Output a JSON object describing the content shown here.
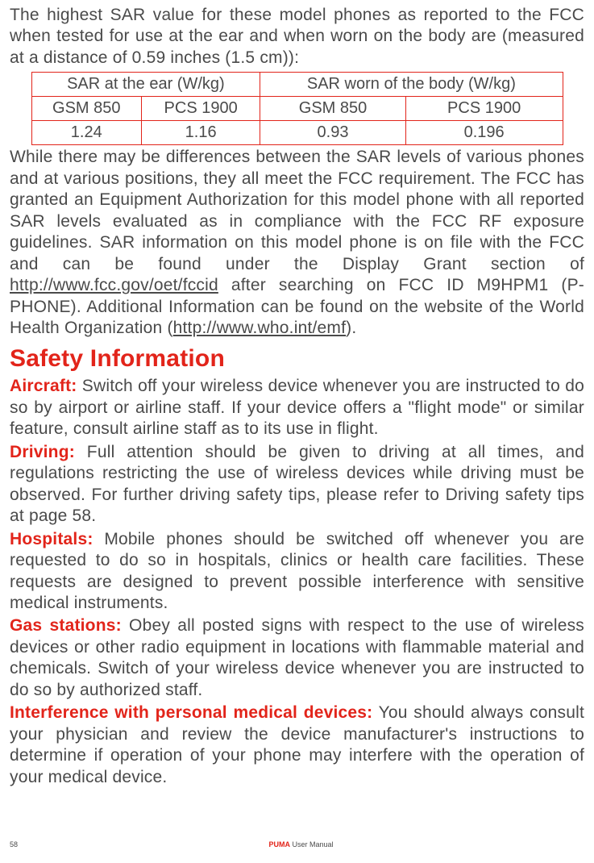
{
  "intro_para": "The highest SAR value for these model phones as reported to the FCC when tested for use at the ear and when worn on the body are (measured at a distance of 0.59 inches (1.5 cm)):",
  "table": {
    "border_color": "#e2241a",
    "header1": "SAR at the ear (W/kg)",
    "header2": "SAR worn of the body (W/kg)",
    "sub_a": "GSM 850",
    "sub_b": "PCS 1900",
    "sub_c": "GSM 850",
    "sub_d": "PCS 1900",
    "val_a": "1.24",
    "val_b": "1.16",
    "val_c": "0.93",
    "val_d": "0.196"
  },
  "post_table_pre": "While there may be differences between the SAR levels of various phones and at various positions, they all meet the FCC requirement. The FCC has granted an Equipment Authorization for this model phone with all reported SAR levels evaluated as in compliance with the FCC RF exposure guidelines. SAR information on this model phone is on file with the FCC and can be found under the Display Grant section of ",
  "link_fcc": "http://www.fcc.gov/oet/fccid",
  "post_table_mid": " after searching on FCC ID M9HPM1 (P-PHONE). Additional Information can be found on the website of the World Health Organization (",
  "link_who": "http://www.who.int/emf",
  "post_table_end": ").",
  "heading": "Safety Information",
  "sections": {
    "aircraft_label": "Aircraft:",
    "aircraft_text": " Switch off your wireless device whenever you are instructed to do so by airport or airline staff. If your device offers a \"flight mode\" or similar feature, consult airline staff as to its use in flight.",
    "driving_label": "Driving:",
    "driving_text": " Full attention should be given to driving at all times, and regulations restricting the use of wireless devices while driving must be observed. For further driving safety tips, please refer to Driving safety tips at page 58.",
    "hospitals_label": "Hospitals:",
    "hospitals_text": " Mobile phones should be switched off whenever you are requested to do so in hospitals, clinics or health care facilities. These requests are designed to prevent possible interference with sensitive medical instruments.",
    "gas_label": "Gas stations:",
    "gas_text": " Obey all posted signs with respect to the use of wireless devices or other radio equipment in locations with flammable material and chemicals. Switch of your wireless device whenever you are instructed to do so by authorized staff.",
    "interf_label": "Interference with personal medical devices:",
    "interf_text": " You should always consult your physician and review the device manufacturer's instructions to determine if operation of your phone may interfere with the operation of your medical device."
  },
  "footer": {
    "page_no": "58",
    "brand_red": "PUMA",
    "brand_rest": " User Manual"
  },
  "colors": {
    "accent": "#e2241a",
    "text": "#4a4a4a",
    "background": "#ffffff"
  }
}
